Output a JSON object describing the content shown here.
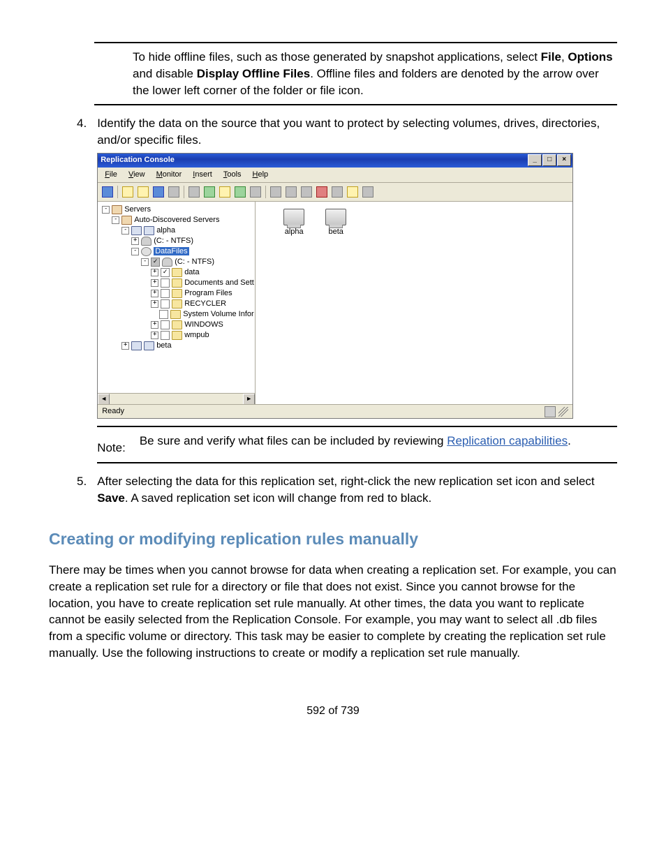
{
  "note1": {
    "part1": "To hide offline files, such as those generated by snapshot applications, select ",
    "bold1": "File",
    "sep1": ", ",
    "bold2": "Options",
    "mid": " and disable ",
    "bold3": "Display Offline Files",
    "part2": ". Offline files and folders are denoted by the arrow over the lower left corner of the folder or file icon."
  },
  "step4": {
    "num": "4.",
    "text": "Identify the data on the source that you want to protect by selecting volumes, drives, directories, and/or specific files."
  },
  "app": {
    "title": "Replication Console",
    "winbtns": {
      "min": "_",
      "max": "□",
      "close": "×"
    },
    "menu": [
      {
        "label": "File",
        "u": "F"
      },
      {
        "label": "View",
        "u": "V"
      },
      {
        "label": "Monitor",
        "u": "M"
      },
      {
        "label": "Insert",
        "u": "I"
      },
      {
        "label": "Tools",
        "u": "T"
      },
      {
        "label": "Help",
        "u": "H"
      }
    ],
    "toolbar_groups": [
      [
        "blue"
      ],
      [
        "yellow",
        "yellow",
        "blue",
        "grey"
      ],
      [
        "grey",
        "green",
        "yellow",
        "green",
        "grey"
      ],
      [
        "grey",
        "grey",
        "grey",
        "red",
        "grey",
        "yellow",
        "grey"
      ]
    ],
    "tree": {
      "root": {
        "label": "Servers"
      },
      "auto": {
        "label": "Auto-Discovered Servers"
      },
      "alpha": {
        "label": "alpha"
      },
      "cdrive": {
        "label": "(C: - NTFS)"
      },
      "datafiles": {
        "label": "DataFiles"
      },
      "cdrive2": {
        "label": "(C: - NTFS)"
      },
      "data": {
        "label": "data"
      },
      "docs": {
        "label": "Documents and Sett"
      },
      "prog": {
        "label": "Program Files"
      },
      "recycler": {
        "label": "RECYCLER"
      },
      "sysvol": {
        "label": "System Volume Infor"
      },
      "windows": {
        "label": "WINDOWS"
      },
      "wmpub": {
        "label": "wmpub"
      },
      "beta": {
        "label": "beta"
      }
    },
    "right": {
      "server1": "alpha",
      "server2": "beta"
    },
    "status": "Ready",
    "scroll": {
      "left": "◄",
      "right": "►"
    }
  },
  "note2": {
    "label": "Note:",
    "before": "Be sure and verify what files can be included by reviewing ",
    "link": "Replication capabilities",
    "after": "."
  },
  "step5": {
    "num": "5.",
    "before": "After selecting the data for this replication set, right-click the new replication set icon and select ",
    "bold": "Save",
    "after": ". A saved replication set icon will change from red to black."
  },
  "heading": "Creating or modifying replication rules manually",
  "para": "There may be times when you cannot browse for data when creating a replication set. For example, you can create a replication set rule for a directory or file that does not exist. Since you cannot browse for the location, you have to create replication set rule manually. At other times, the data you want to replicate cannot be easily selected from the Replication Console. For example, you may want to select all .db files from a specific volume or directory. This task may be easier to complete by creating the replication set rule manually. Use the following instructions to create or modify a replication set rule manually.",
  "pagenum": "592 of 739"
}
